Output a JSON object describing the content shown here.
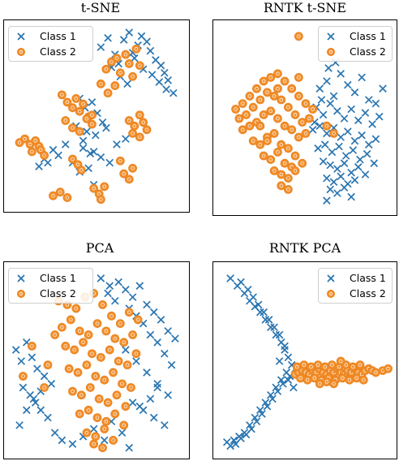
{
  "colors": {
    "class1": "#2a75b0",
    "class2": "#f28e2b",
    "class2_edge": "#e8821e"
  },
  "chart_data": [
    {
      "type": "scatter",
      "title": "t-SNE",
      "legend": {
        "position": "top-left",
        "entries": [
          "Class 1",
          "Class 2"
        ]
      },
      "axes_visible": false,
      "grid": false,
      "series": [
        {
          "name": "Class 1",
          "marker": "x",
          "x": [
            0.52,
            0.56,
            0.6,
            0.62,
            0.65,
            0.68,
            0.7,
            0.73,
            0.75,
            0.78,
            0.8,
            0.83,
            0.86,
            0.88,
            0.9,
            0.58,
            0.63,
            0.67,
            0.71,
            0.76,
            0.81,
            0.85,
            0.89,
            0.93,
            0.4,
            0.43,
            0.47,
            0.5,
            0.53,
            0.38,
            0.44,
            0.49,
            0.55,
            0.61,
            0.66,
            0.42,
            0.46,
            0.52,
            0.57,
            0.36,
            0.4,
            0.45,
            0.48,
            0.25,
            0.2,
            0.17,
            0.22,
            0.28,
            0.32,
            0.42,
            0.48
          ],
          "y": [
            0.88,
            0.93,
            0.84,
            0.79,
            0.92,
            0.96,
            0.85,
            0.89,
            0.94,
            0.91,
            0.86,
            0.81,
            0.78,
            0.74,
            0.7,
            0.77,
            0.72,
            0.68,
            0.82,
            0.76,
            0.73,
            0.69,
            0.65,
            0.63,
            0.6,
            0.55,
            0.58,
            0.52,
            0.47,
            0.45,
            0.42,
            0.4,
            0.44,
            0.35,
            0.38,
            0.33,
            0.3,
            0.28,
            0.25,
            0.25,
            0.2,
            0.22,
            0.13,
            0.32,
            0.27,
            0.23,
            0.25,
            0.29,
            0.35,
            0.37,
            0.31
          ]
        },
        {
          "name": "Class 2",
          "marker": "o",
          "x": [
            0.55,
            0.58,
            0.61,
            0.63,
            0.66,
            0.68,
            0.7,
            0.72,
            0.74,
            0.52,
            0.56,
            0.6,
            0.3,
            0.33,
            0.36,
            0.38,
            0.4,
            0.42,
            0.45,
            0.47,
            0.32,
            0.36,
            0.4,
            0.44,
            0.47,
            0.68,
            0.71,
            0.74,
            0.76,
            0.78,
            0.7,
            0.74,
            0.06,
            0.09,
            0.12,
            0.15,
            0.17,
            0.13,
            0.18,
            0.2,
            0.36,
            0.39,
            0.41,
            0.65,
            0.68,
            0.7,
            0.25,
            0.29,
            0.33,
            0.48,
            0.51,
            0.54,
            0.52,
            0.63
          ],
          "y": [
            0.76,
            0.8,
            0.82,
            0.74,
            0.84,
            0.79,
            0.72,
            0.87,
            0.78,
            0.68,
            0.63,
            0.67,
            0.62,
            0.58,
            0.55,
            0.6,
            0.53,
            0.57,
            0.5,
            0.46,
            0.48,
            0.44,
            0.42,
            0.49,
            0.51,
            0.48,
            0.45,
            0.51,
            0.47,
            0.43,
            0.41,
            0.39,
            0.36,
            0.38,
            0.35,
            0.37,
            0.34,
            0.31,
            0.32,
            0.29,
            0.27,
            0.24,
            0.21,
            0.19,
            0.16,
            0.22,
            0.07,
            0.09,
            0.06,
            0.11,
            0.08,
            0.12,
            0.05,
            0.26
          ]
        }
      ]
    },
    {
      "type": "scatter",
      "title": "RNTK t-SNE",
      "legend": {
        "position": "top-right",
        "entries": [
          "Class 1",
          "Class 2"
        ]
      },
      "axes_visible": false,
      "grid": false,
      "series": [
        {
          "name": "Class 1",
          "marker": "x",
          "x": [
            0.58,
            0.62,
            0.66,
            0.7,
            0.74,
            0.78,
            0.82,
            0.86,
            0.9,
            0.94,
            0.56,
            0.6,
            0.64,
            0.68,
            0.72,
            0.76,
            0.8,
            0.84,
            0.88,
            0.92,
            0.54,
            0.58,
            0.62,
            0.66,
            0.7,
            0.74,
            0.78,
            0.82,
            0.86,
            0.9,
            0.57,
            0.61,
            0.65,
            0.69,
            0.73,
            0.77,
            0.81,
            0.85,
            0.89,
            0.6,
            0.64,
            0.68,
            0.72,
            0.76,
            0.8,
            0.84,
            0.62,
            0.66,
            0.7,
            0.74,
            0.78,
            0.64,
            0.68,
            0.72,
            0.76,
            0.55,
            0.59,
            0.63,
            0.67,
            0.62
          ],
          "y": [
            0.66,
            0.7,
            0.62,
            0.74,
            0.68,
            0.64,
            0.72,
            0.6,
            0.58,
            0.66,
            0.56,
            0.52,
            0.58,
            0.54,
            0.5,
            0.55,
            0.49,
            0.53,
            0.47,
            0.51,
            0.44,
            0.46,
            0.42,
            0.45,
            0.4,
            0.43,
            0.38,
            0.41,
            0.36,
            0.39,
            0.34,
            0.36,
            0.32,
            0.35,
            0.3,
            0.33,
            0.28,
            0.31,
            0.26,
            0.27,
            0.25,
            0.23,
            0.26,
            0.21,
            0.24,
            0.2,
            0.18,
            0.16,
            0.19,
            0.15,
            0.17,
            0.12,
            0.1,
            0.13,
            0.08,
            0.48,
            0.6,
            0.77,
            0.8,
            0.06
          ]
        },
        {
          "name": "Class 2",
          "marker": "o",
          "x": [
            0.1,
            0.14,
            0.18,
            0.22,
            0.26,
            0.3,
            0.34,
            0.38,
            0.42,
            0.46,
            0.5,
            0.54,
            0.12,
            0.16,
            0.2,
            0.24,
            0.28,
            0.32,
            0.36,
            0.4,
            0.44,
            0.48,
            0.14,
            0.18,
            0.22,
            0.26,
            0.3,
            0.34,
            0.38,
            0.42,
            0.46,
            0.5,
            0.2,
            0.24,
            0.28,
            0.32,
            0.36,
            0.4,
            0.44,
            0.26,
            0.3,
            0.34,
            0.38,
            0.42,
            0.32,
            0.36,
            0.4,
            0.44,
            0.48,
            0.36,
            0.4,
            0.24,
            0.28,
            0.34,
            0.46,
            0.52,
            0.62,
            0.66,
            0.46
          ],
          "y": [
            0.55,
            0.58,
            0.62,
            0.66,
            0.7,
            0.72,
            0.74,
            0.7,
            0.66,
            0.62,
            0.58,
            0.55,
            0.5,
            0.52,
            0.56,
            0.6,
            0.64,
            0.62,
            0.6,
            0.56,
            0.52,
            0.48,
            0.44,
            0.46,
            0.48,
            0.52,
            0.54,
            0.5,
            0.46,
            0.44,
            0.4,
            0.42,
            0.38,
            0.36,
            0.4,
            0.42,
            0.36,
            0.34,
            0.3,
            0.3,
            0.28,
            0.32,
            0.26,
            0.24,
            0.22,
            0.2,
            0.18,
            0.22,
            0.26,
            0.14,
            0.12,
            0.46,
            0.38,
            0.66,
            0.72,
            0.5,
            0.46,
            0.42,
            0.94
          ]
        }
      ]
    },
    {
      "type": "scatter",
      "title": "PCA",
      "legend": {
        "position": "top-left",
        "entries": [
          "Class 1",
          "Class 2"
        ]
      },
      "axes_visible": false,
      "grid": false,
      "series": [
        {
          "name": "Class 1",
          "marker": "x",
          "x": [
            0.52,
            0.57,
            0.62,
            0.66,
            0.7,
            0.74,
            0.78,
            0.82,
            0.86,
            0.9,
            0.94,
            0.56,
            0.6,
            0.68,
            0.72,
            0.76,
            0.8,
            0.84,
            0.88,
            0.92,
            0.04,
            0.07,
            0.1,
            0.13,
            0.16,
            0.2,
            0.24,
            0.08,
            0.12,
            0.15,
            0.18,
            0.22,
            0.06,
            0.1,
            0.14,
            0.18,
            0.66,
            0.72,
            0.78,
            0.84,
            0.9,
            0.7,
            0.76,
            0.82,
            0.88,
            0.26,
            0.3,
            0.36,
            0.42,
            0.48,
            0.54,
            0.58,
            0.64,
            0.68,
            0.74,
            0.8,
            0.84
          ],
          "y": [
            0.94,
            0.9,
            0.92,
            0.88,
            0.84,
            0.9,
            0.8,
            0.76,
            0.72,
            0.66,
            0.62,
            0.86,
            0.82,
            0.78,
            0.74,
            0.7,
            0.64,
            0.6,
            0.54,
            0.48,
            0.56,
            0.5,
            0.6,
            0.52,
            0.46,
            0.42,
            0.38,
            0.36,
            0.32,
            0.28,
            0.24,
            0.2,
            0.16,
            0.24,
            0.3,
            0.34,
            0.56,
            0.5,
            0.44,
            0.38,
            0.32,
            0.28,
            0.24,
            0.2,
            0.16,
            0.12,
            0.08,
            0.06,
            0.1,
            0.14,
            0.08,
            0.18,
            0.12,
            0.04,
            0.26,
            0.3,
            0.36
          ]
        },
        {
          "name": "Class 2",
          "marker": "o",
          "x": [
            0.28,
            0.33,
            0.38,
            0.43,
            0.48,
            0.53,
            0.58,
            0.63,
            0.68,
            0.73,
            0.3,
            0.35,
            0.4,
            0.45,
            0.5,
            0.55,
            0.6,
            0.65,
            0.7,
            0.32,
            0.37,
            0.42,
            0.47,
            0.52,
            0.57,
            0.62,
            0.67,
            0.72,
            0.34,
            0.39,
            0.44,
            0.49,
            0.54,
            0.59,
            0.64,
            0.69,
            0.36,
            0.41,
            0.46,
            0.51,
            0.56,
            0.61,
            0.66,
            0.4,
            0.45,
            0.5,
            0.55,
            0.6,
            0.65,
            0.44,
            0.49,
            0.54,
            0.59,
            0.48,
            0.53,
            0.13,
            0.22,
            0.08,
            0.2,
            0.26
          ],
          "y": [
            0.82,
            0.8,
            0.78,
            0.84,
            0.86,
            0.8,
            0.74,
            0.7,
            0.76,
            0.72,
            0.68,
            0.72,
            0.66,
            0.64,
            0.7,
            0.66,
            0.62,
            0.6,
            0.64,
            0.58,
            0.56,
            0.6,
            0.54,
            0.52,
            0.56,
            0.5,
            0.48,
            0.54,
            0.46,
            0.44,
            0.48,
            0.42,
            0.4,
            0.44,
            0.38,
            0.36,
            0.34,
            0.32,
            0.36,
            0.3,
            0.28,
            0.32,
            0.26,
            0.22,
            0.24,
            0.2,
            0.18,
            0.22,
            0.16,
            0.12,
            0.1,
            0.14,
            0.08,
            0.06,
            0.04,
            0.58,
            0.48,
            0.42,
            0.36,
            0.64
          ]
        }
      ]
    },
    {
      "type": "scatter",
      "title": "RNTK PCA",
      "legend": {
        "position": "top-right",
        "entries": [
          "Class 1",
          "Class 2"
        ]
      },
      "axes_visible": false,
      "grid": false,
      "series": [
        {
          "name": "Class 1",
          "marker": "x",
          "x": [
            0.07,
            0.11,
            0.15,
            0.18,
            0.21,
            0.24,
            0.27,
            0.3,
            0.33,
            0.36,
            0.13,
            0.17,
            0.2,
            0.23,
            0.26,
            0.29,
            0.32,
            0.35,
            0.38,
            0.4,
            0.42,
            0.39,
            0.36,
            0.33,
            0.3,
            0.27,
            0.24,
            0.21,
            0.18,
            0.15,
            0.12,
            0.09,
            0.07,
            0.05,
            0.4,
            0.44,
            0.37,
            0.34,
            0.31,
            0.28,
            0.25,
            0.22,
            0.19,
            0.16,
            0.13,
            0.1,
            0.35,
            0.41,
            0.43,
            0.46,
            0.38
          ],
          "y": [
            0.94,
            0.9,
            0.86,
            0.82,
            0.79,
            0.76,
            0.72,
            0.68,
            0.64,
            0.6,
            0.92,
            0.88,
            0.84,
            0.8,
            0.76,
            0.72,
            0.68,
            0.64,
            0.56,
            0.52,
            0.48,
            0.44,
            0.4,
            0.36,
            0.32,
            0.28,
            0.24,
            0.2,
            0.16,
            0.12,
            0.1,
            0.08,
            0.05,
            0.07,
            0.4,
            0.46,
            0.38,
            0.34,
            0.3,
            0.26,
            0.22,
            0.18,
            0.14,
            0.11,
            0.09,
            0.06,
            0.5,
            0.42,
            0.36,
            0.44,
            0.58
          ]
        },
        {
          "name": "Class 2",
          "marker": "o",
          "x": [
            0.44,
            0.46,
            0.48,
            0.5,
            0.52,
            0.54,
            0.56,
            0.58,
            0.6,
            0.62,
            0.64,
            0.66,
            0.68,
            0.7,
            0.72,
            0.74,
            0.76,
            0.78,
            0.8,
            0.82,
            0.84,
            0.47,
            0.51,
            0.55,
            0.59,
            0.63,
            0.67,
            0.71,
            0.75,
            0.79,
            0.83,
            0.45,
            0.49,
            0.53,
            0.57,
            0.61,
            0.65,
            0.69,
            0.73,
            0.77,
            0.81,
            0.86,
            0.88,
            0.9,
            0.94,
            0.97,
            0.58,
            0.62,
            0.66,
            0.7
          ],
          "y": [
            0.43,
            0.44,
            0.45,
            0.44,
            0.43,
            0.45,
            0.44,
            0.46,
            0.44,
            0.43,
            0.45,
            0.44,
            0.46,
            0.44,
            0.43,
            0.45,
            0.44,
            0.46,
            0.44,
            0.43,
            0.45,
            0.41,
            0.4,
            0.41,
            0.4,
            0.41,
            0.4,
            0.41,
            0.4,
            0.41,
            0.4,
            0.47,
            0.48,
            0.47,
            0.48,
            0.47,
            0.48,
            0.47,
            0.48,
            0.47,
            0.48,
            0.46,
            0.45,
            0.44,
            0.45,
            0.46,
            0.38,
            0.39,
            0.38,
            0.5
          ]
        }
      ]
    }
  ]
}
